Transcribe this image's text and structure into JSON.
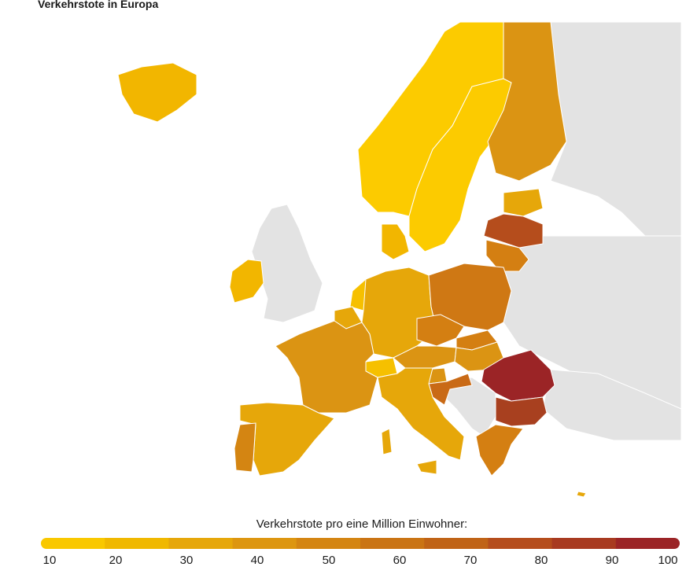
{
  "title": "Verkehrstote in Europa",
  "legend": {
    "title": "Verkehrstote pro eine Million Einwohner:",
    "ticks": [
      "10",
      "20",
      "30",
      "40",
      "50",
      "60",
      "70",
      "80",
      "90",
      "100"
    ],
    "colors": [
      "#f9c800",
      "#f0b800",
      "#e6a70a",
      "#dd9610",
      "#d48512",
      "#ca7414",
      "#c06316",
      "#b54d1c",
      "#a83a20",
      "#9b2426"
    ]
  },
  "map_colors": {
    "no_data": "#e3e3e3",
    "border": "#ffffff"
  }
}
